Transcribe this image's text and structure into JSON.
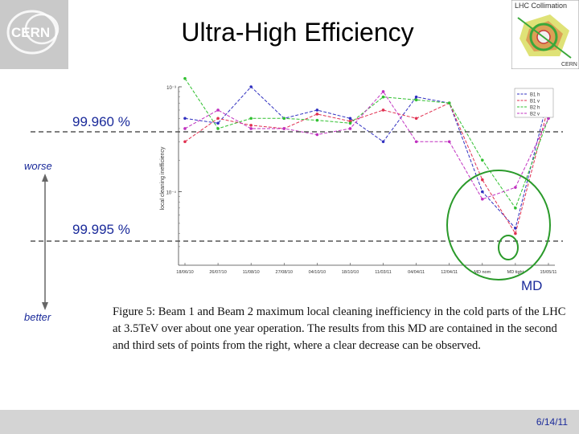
{
  "slide": {
    "title": "Ultra-High Efficiency",
    "date": "6/14/11",
    "cern_logo_text": "CERN",
    "lhc_logo_text": "LHC Collimation",
    "lhc_logo_sub": "CERN",
    "level_high": "99.960 %",
    "level_low": "99.995 %",
    "worse": "worse",
    "better": "better",
    "md_label": "MD",
    "caption": "Figure 5: Beam 1 and Beam 2 maximum local cleaning inefficiency in the cold parts of the LHC at 3.5TeV over about one year operation. The results from this MD are contained in the second and third sets of points from the right, where a clear decrease can be observed.",
    "colors": {
      "accent": "#1a2a9a",
      "md_circle": "#2a9a2a",
      "dashed_line": "#555555"
    }
  },
  "chart_data": {
    "type": "line",
    "ylabel": "local cleaning inefficiency",
    "y_scale": "log",
    "y_ticks": [
      "10⁻³",
      "10⁻⁴"
    ],
    "categories": [
      "18/06/10",
      "26/07/10",
      "11/08/10",
      "27/08/10",
      "04/10/10",
      "18/10/10",
      "11/03/11",
      "04/04/11",
      "12/04/11",
      "MD nom",
      "MD tight",
      "15/05/11"
    ],
    "legend_position": "top-right",
    "series": [
      {
        "name": "B1 h",
        "color": "#3030c0",
        "values": [
          0.0005,
          0.00045,
          0.001,
          0.0005,
          0.0006,
          0.0005,
          0.0003,
          0.0008,
          0.0007,
          0.0001,
          4.5e-05,
          0.0008
        ]
      },
      {
        "name": "B1 v",
        "color": "#e03050",
        "values": [
          0.0003,
          0.0005,
          0.00043,
          0.0004,
          0.00055,
          0.00047,
          0.0006,
          0.0005,
          0.0007,
          0.00013,
          4e-05,
          0.00065
        ]
      },
      {
        "name": "B2 h",
        "color": "#30c030",
        "values": [
          0.0012,
          0.0004,
          0.0005,
          0.0005,
          0.00048,
          0.00045,
          0.0008,
          0.00075,
          0.0007,
          0.0002,
          7e-05,
          0.0005
        ]
      },
      {
        "name": "B2 v",
        "color": "#c030c0",
        "values": [
          0.0004,
          0.0006,
          0.0004,
          0.0004,
          0.00035,
          0.0004,
          0.0009,
          0.0003,
          0.0003,
          8.5e-05,
          0.00011,
          0.0005
        ]
      }
    ]
  }
}
